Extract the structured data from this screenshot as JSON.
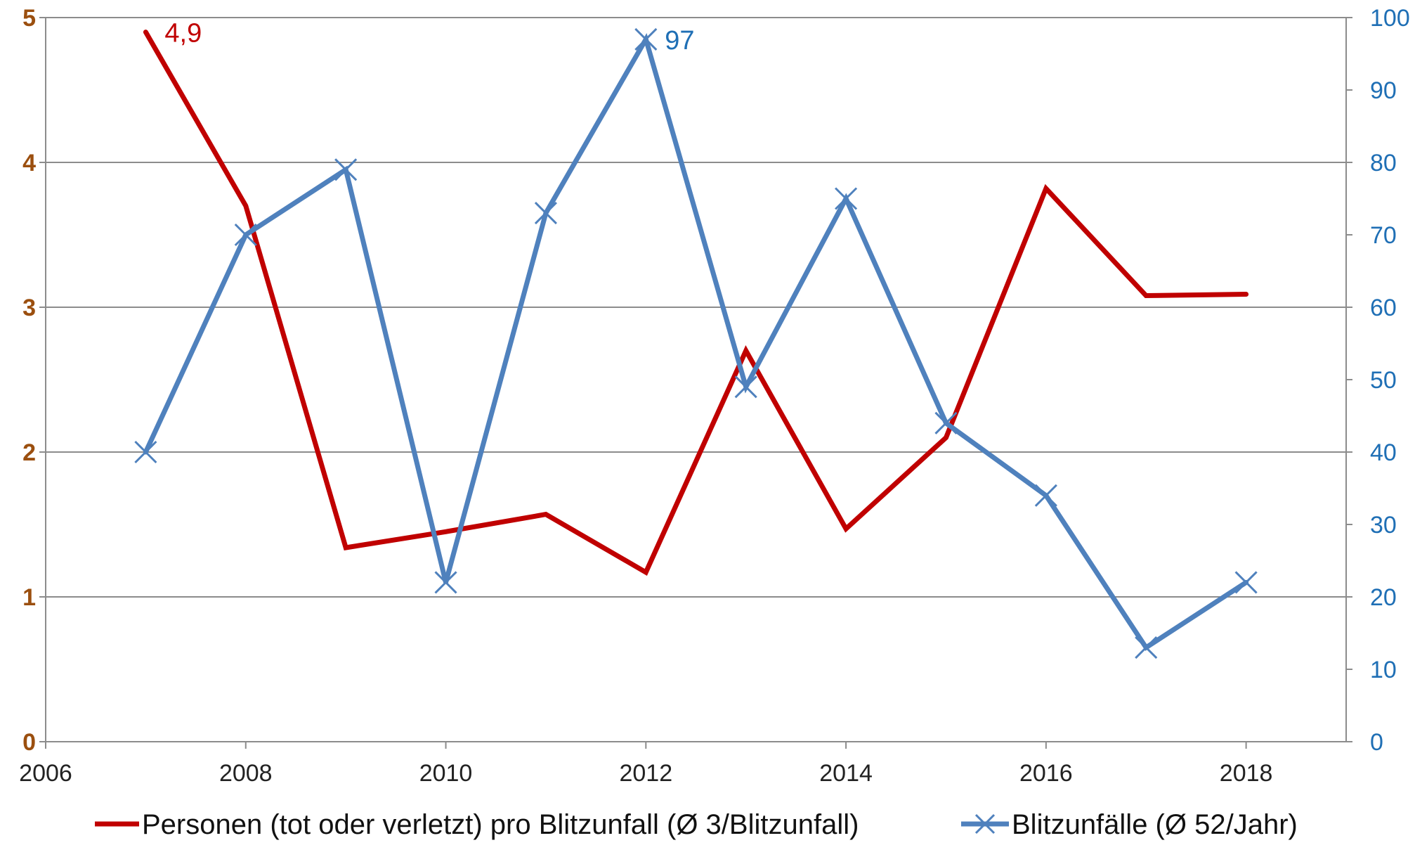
{
  "chart_data": {
    "type": "line",
    "x": [
      2007,
      2008,
      2009,
      2010,
      2011,
      2012,
      2013,
      2014,
      2015,
      2016,
      2017,
      2018
    ],
    "series": [
      {
        "name": "Personen (tot oder verletzt) pro Blitzunfall (Ø 3/Blitzunfall)",
        "axis": "left",
        "color": "#c00000",
        "marker": "none",
        "values": [
          4.9,
          3.7,
          1.34,
          1.45,
          1.57,
          1.17,
          2.7,
          1.47,
          2.1,
          3.82,
          3.08,
          3.09
        ]
      },
      {
        "name": "Blitzunfälle (Ø 52/Jahr)",
        "axis": "right",
        "color": "#4f81bd",
        "marker": "x",
        "values": [
          40,
          70,
          79,
          22,
          73,
          97,
          49,
          75,
          44,
          34,
          13,
          22
        ]
      }
    ],
    "data_labels": [
      {
        "series": 0,
        "index": 0,
        "text": "4,9",
        "color": "#c00000"
      },
      {
        "series": 1,
        "index": 5,
        "text": "97",
        "color": "#1f6fb5"
      }
    ],
    "xlim": [
      2006,
      2019
    ],
    "x_ticks": [
      "2006",
      "2008",
      "2010",
      "2012",
      "2014",
      "2016",
      "2018"
    ],
    "x_tick_values": [
      2006,
      2008,
      2010,
      2012,
      2014,
      2016,
      2018
    ],
    "ylim_left": [
      0,
      5
    ],
    "y_left_ticks": [
      "0",
      "1",
      "2",
      "3",
      "4",
      "5"
    ],
    "ylim_right": [
      0,
      100
    ],
    "y_right_ticks": [
      "0",
      "10",
      "20",
      "30",
      "40",
      "50",
      "60",
      "70",
      "80",
      "90",
      "100"
    ],
    "grid": true,
    "legend": "bottom"
  }
}
